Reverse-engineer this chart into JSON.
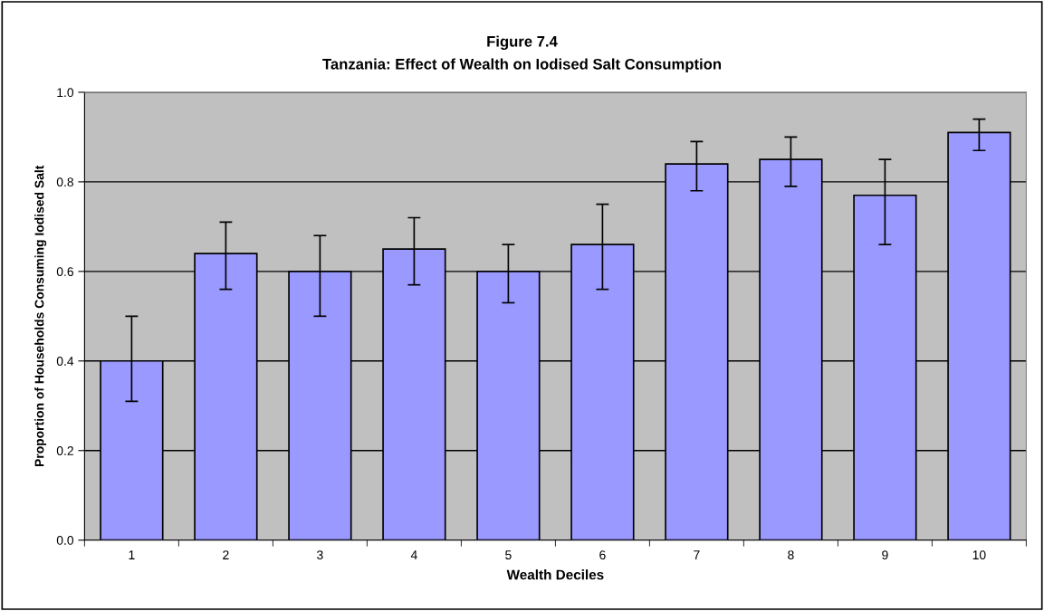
{
  "chart_data": {
    "type": "bar",
    "title": "Figure 7.4",
    "subtitle": "Tanzania: Effect of Wealth on Iodised Salt Consumption",
    "xlabel": "Wealth Deciles",
    "ylabel": "Proportion of Households Consuming Iodised Salt",
    "categories": [
      "1",
      "2",
      "3",
      "4",
      "5",
      "6",
      "7",
      "8",
      "9",
      "10"
    ],
    "values": [
      0.4,
      0.64,
      0.6,
      0.65,
      0.6,
      0.66,
      0.84,
      0.85,
      0.77,
      0.91
    ],
    "errors": [
      [
        0.31,
        0.5
      ],
      [
        0.56,
        0.71
      ],
      [
        0.5,
        0.68
      ],
      [
        0.57,
        0.72
      ],
      [
        0.53,
        0.66
      ],
      [
        0.56,
        0.75
      ],
      [
        0.78,
        0.89
      ],
      [
        0.79,
        0.9
      ],
      [
        0.66,
        0.85
      ],
      [
        0.87,
        0.94
      ]
    ],
    "color": "#9999ff",
    "ylim": [
      0.0,
      1.0
    ],
    "yticks": [
      {
        "value": 0,
        "label": "0.0"
      },
      0.2,
      0.4,
      0.6,
      0.8,
      {
        "value": 1,
        "label": "1.0"
      }
    ],
    "grid": "y"
  }
}
